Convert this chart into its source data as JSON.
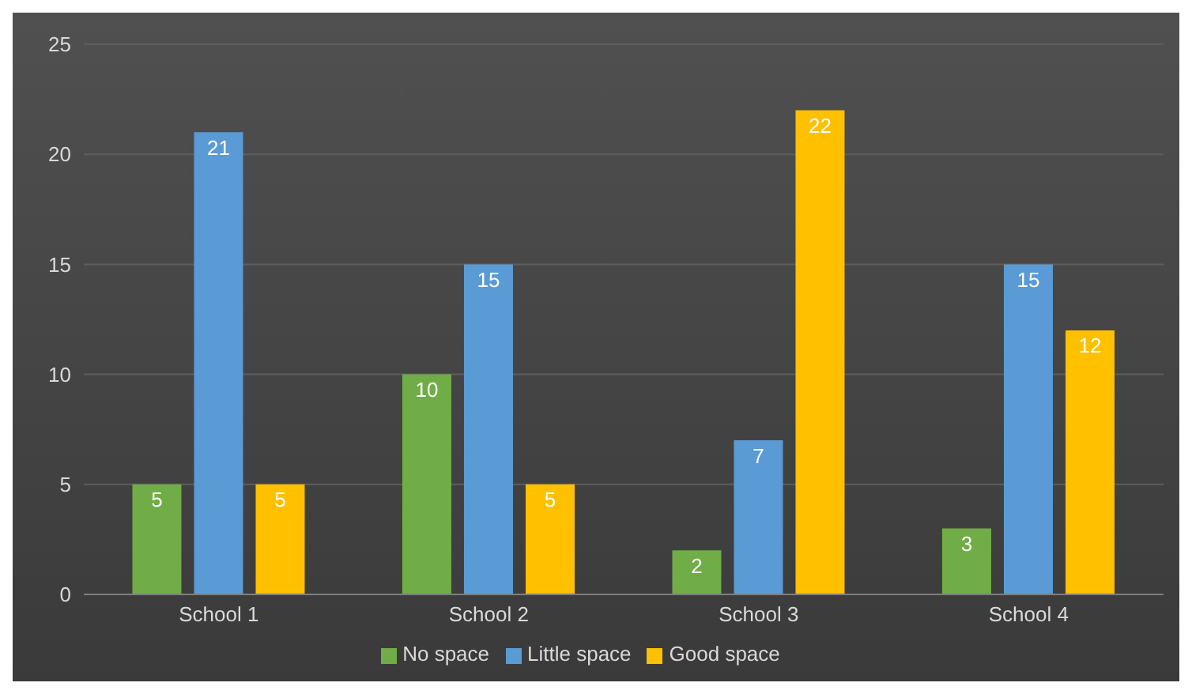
{
  "chart_data": {
    "type": "bar",
    "categories": [
      "School 1",
      "School 2",
      "School 3",
      "School 4"
    ],
    "series": [
      {
        "name": "No space",
        "color": "#70ad47",
        "values": [
          5,
          10,
          2,
          3
        ]
      },
      {
        "name": "Little space",
        "color": "#5b9bd5",
        "values": [
          21,
          15,
          7,
          15
        ]
      },
      {
        "name": "Good space",
        "color": "#ffc000",
        "values": [
          5,
          5,
          22,
          12
        ]
      }
    ],
    "ylim": [
      0,
      25
    ],
    "yticks": [
      0,
      5,
      10,
      15,
      20,
      25
    ],
    "grid": "y",
    "legend": "bottom",
    "data_labels": true
  }
}
